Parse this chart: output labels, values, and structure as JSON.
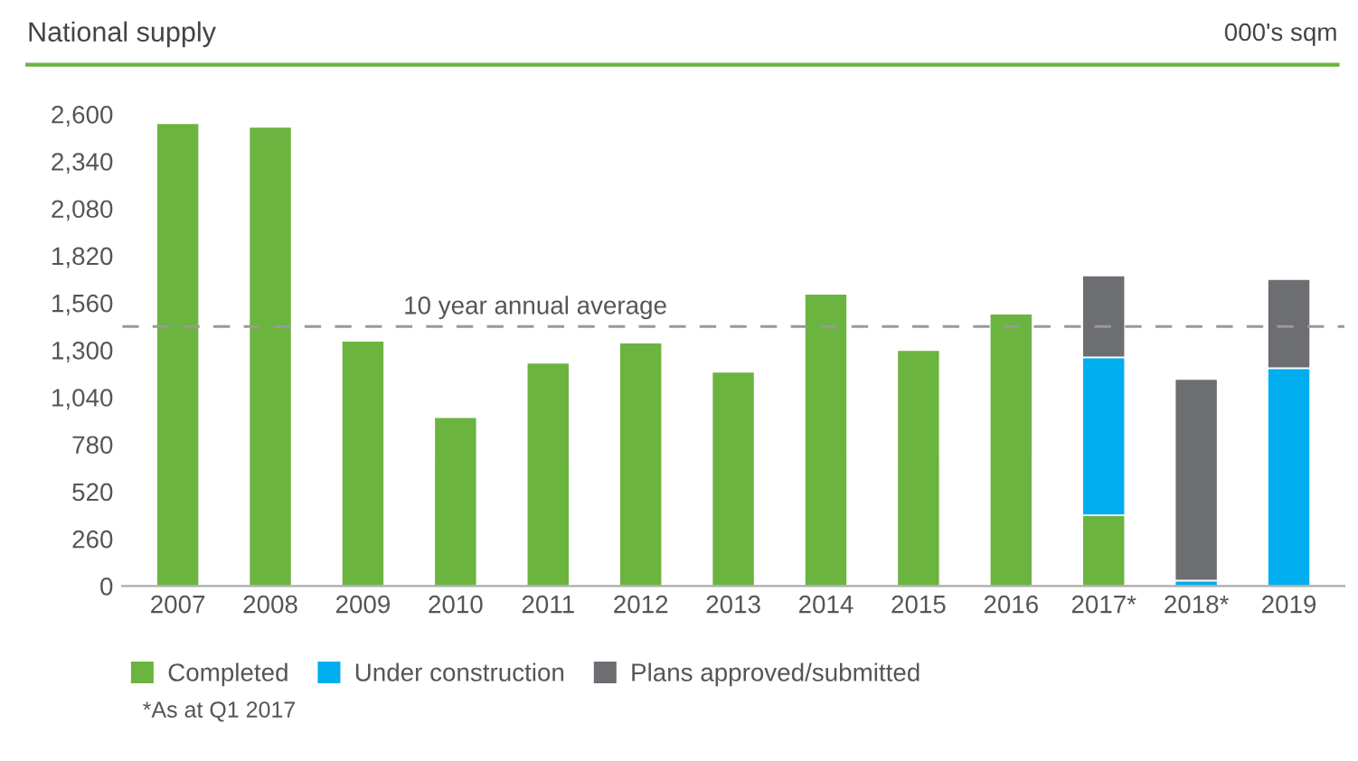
{
  "chart_data": {
    "type": "bar",
    "title": "National supply",
    "ylabel": "000's sqm",
    "categories": [
      "2007",
      "2008",
      "2009",
      "2010",
      "2011",
      "2012",
      "2013",
      "2014",
      "2015",
      "2016",
      "2017*",
      "2018*",
      "2019"
    ],
    "stacked": true,
    "series": [
      {
        "name": "Completed",
        "color": "#6bb43f",
        "values": [
          2550,
          2530,
          1350,
          930,
          1230,
          1340,
          1180,
          1610,
          1300,
          1500,
          390,
          0,
          0
        ]
      },
      {
        "name": "Under construction",
        "color": "#00aeef",
        "values": [
          null,
          null,
          null,
          null,
          null,
          null,
          null,
          null,
          null,
          null,
          870,
          30,
          1200
        ]
      },
      {
        "name": "Plans approved/submitted",
        "color": "#6d6e71",
        "values": [
          null,
          null,
          null,
          null,
          null,
          null,
          null,
          null,
          null,
          null,
          450,
          1110,
          490
        ]
      }
    ],
    "ylim": [
      0,
      2600
    ],
    "yticks": [
      0,
      {
        "value": 260,
        "label": "260"
      },
      {
        "value": 520,
        "label": "520"
      },
      {
        "value": 780,
        "label": "780"
      },
      {
        "value": 1040,
        "label": "1,040"
      },
      {
        "value": 1300,
        "label": "1,300"
      },
      {
        "value": 1560,
        "label": "1,560"
      },
      {
        "value": 1820,
        "label": "1,820"
      },
      {
        "value": 2080,
        "label": "2,080"
      },
      {
        "value": 2340,
        "label": "2,340"
      },
      {
        "value": 2600,
        "label": "2,600"
      }
    ],
    "ref_lines": [
      {
        "axis": "y",
        "value": 1430,
        "label": "10 year annual average",
        "color": "#999999",
        "line_style": "dashed"
      }
    ],
    "grid": false,
    "legend": "bottom left",
    "annotations": [
      "*As at Q1 2017"
    ]
  }
}
